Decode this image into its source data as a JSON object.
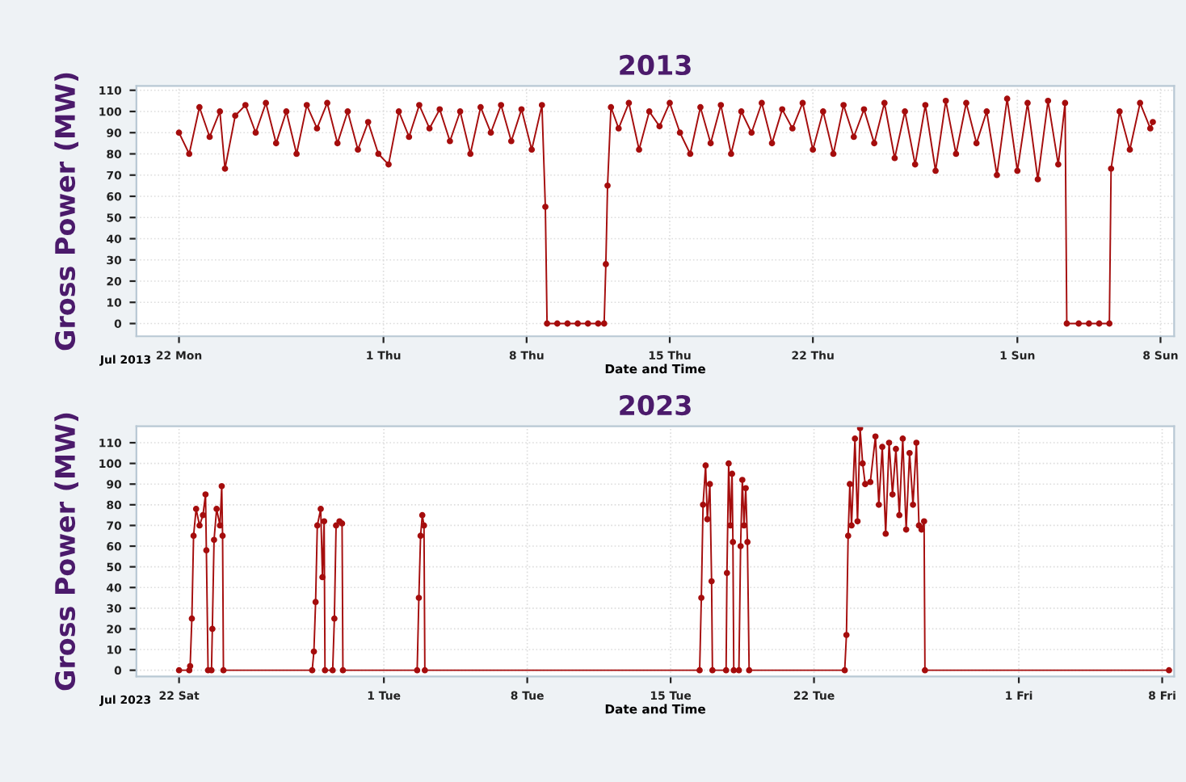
{
  "chart_data": [
    {
      "type": "line",
      "title": "2013",
      "xlabel": "Date and Time",
      "ylabel": "Gross Power (MW)",
      "annotations": [
        "Jul 2013"
      ],
      "marker": "circle",
      "line_style": "solid",
      "grid": true,
      "xlim": [
        "2013-07-19T22:00",
        "2013-09-08T16:00"
      ],
      "xticks": [
        {
          "value": "2013-07-22",
          "label": "22 Mon"
        },
        {
          "value": "2013-08-01",
          "label": "1 Thu"
        },
        {
          "value": "2013-08-08",
          "label": "8 Thu"
        },
        {
          "value": "2013-08-15",
          "label": "15 Thu"
        },
        {
          "value": "2013-08-22",
          "label": "22 Thu"
        },
        {
          "value": "2013-09-01",
          "label": "1 Sun"
        },
        {
          "value": "2013-09-08",
          "label": "8 Sun"
        }
      ],
      "ylim": [
        -6,
        112
      ],
      "yticks": [
        0,
        10,
        20,
        30,
        40,
        50,
        60,
        70,
        80,
        90,
        100,
        110
      ],
      "series": [
        {
          "color": "#a50d0d",
          "x": [
            "2013-07-22T00:00",
            "2013-07-22T12:00",
            "2013-07-23T00:00",
            "2013-07-23T12:00",
            "2013-07-24T00:00",
            "2013-07-24T06:00",
            "2013-07-24T18:00",
            "2013-07-25T06:00",
            "2013-07-25T18:00",
            "2013-07-26T06:00",
            "2013-07-26T18:00",
            "2013-07-27T06:00",
            "2013-07-27T18:00",
            "2013-07-28T06:00",
            "2013-07-28T18:00",
            "2013-07-29T06:00",
            "2013-07-29T18:00",
            "2013-07-30T06:00",
            "2013-07-30T18:00",
            "2013-07-31T06:00",
            "2013-07-31T18:00",
            "2013-08-01T06:00",
            "2013-08-01T18:00",
            "2013-08-02T06:00",
            "2013-08-02T18:00",
            "2013-08-03T06:00",
            "2013-08-03T18:00",
            "2013-08-04T06:00",
            "2013-08-04T18:00",
            "2013-08-05T06:00",
            "2013-08-05T18:00",
            "2013-08-06T06:00",
            "2013-08-06T18:00",
            "2013-08-07T06:00",
            "2013-08-07T18:00",
            "2013-08-08T06:00",
            "2013-08-08T18:00",
            "2013-08-08T22:00",
            "2013-08-09T00:00",
            "2013-08-09T12:00",
            "2013-08-10T00:00",
            "2013-08-10T12:00",
            "2013-08-11T00:00",
            "2013-08-11T12:00",
            "2013-08-11T19:00",
            "2013-08-11T21:00",
            "2013-08-11T23:00",
            "2013-08-12T03:00",
            "2013-08-12T12:00",
            "2013-08-13T00:00",
            "2013-08-13T12:00",
            "2013-08-14T00:00",
            "2013-08-14T12:00",
            "2013-08-15T00:00",
            "2013-08-15T12:00",
            "2013-08-16T00:00",
            "2013-08-16T12:00",
            "2013-08-17T00:00",
            "2013-08-17T12:00",
            "2013-08-18T00:00",
            "2013-08-18T12:00",
            "2013-08-19T00:00",
            "2013-08-19T12:00",
            "2013-08-20T00:00",
            "2013-08-20T12:00",
            "2013-08-21T00:00",
            "2013-08-21T12:00",
            "2013-08-22T00:00",
            "2013-08-22T12:00",
            "2013-08-23T00:00",
            "2013-08-23T12:00",
            "2013-08-24T00:00",
            "2013-08-24T12:00",
            "2013-08-25T00:00",
            "2013-08-25T12:00",
            "2013-08-26T00:00",
            "2013-08-26T12:00",
            "2013-08-27T00:00",
            "2013-08-27T12:00",
            "2013-08-28T00:00",
            "2013-08-28T12:00",
            "2013-08-29T00:00",
            "2013-08-29T12:00",
            "2013-08-30T00:00",
            "2013-08-30T12:00",
            "2013-08-31T00:00",
            "2013-08-31T12:00",
            "2013-09-01T00:00",
            "2013-09-01T12:00",
            "2013-09-02T00:00",
            "2013-09-02T12:00",
            "2013-09-03T00:00",
            "2013-09-03T08:00",
            "2013-09-03T10:00",
            "2013-09-04T00:00",
            "2013-09-04T12:00",
            "2013-09-05T00:00",
            "2013-09-05T12:00",
            "2013-09-05T14:00",
            "2013-09-06T00:00",
            "2013-09-06T12:00",
            "2013-09-07T00:00",
            "2013-09-07T12:00",
            "2013-09-07T15:00"
          ],
          "values": [
            90,
            80,
            102,
            88,
            100,
            73,
            98,
            103,
            90,
            104,
            85,
            100,
            80,
            103,
            92,
            104,
            85,
            100,
            82,
            95,
            80,
            75,
            100,
            88,
            103,
            92,
            101,
            86,
            100,
            80,
            102,
            90,
            103,
            86,
            101,
            82,
            103,
            55,
            0,
            0,
            0,
            0,
            0,
            0,
            0,
            28,
            65,
            102,
            92,
            104,
            82,
            100,
            93,
            104,
            90,
            80,
            102,
            85,
            103,
            80,
            100,
            90,
            104,
            85,
            101,
            92,
            104,
            82,
            100,
            80,
            103,
            88,
            101,
            85,
            104,
            78,
            100,
            75,
            103,
            72,
            105,
            80,
            104,
            85,
            100,
            70,
            106,
            72,
            104,
            68,
            105,
            75,
            104,
            0,
            0,
            0,
            0,
            0,
            73,
            100,
            82,
            104,
            92,
            95
          ]
        }
      ]
    },
    {
      "type": "line",
      "title": "2023",
      "xlabel": "Date and Time",
      "ylabel": "Gross Power (MW)",
      "annotations": [
        "Jul 2023"
      ],
      "marker": "circle",
      "line_style": "solid",
      "grid": true,
      "xlim": [
        "2023-07-19T22:00",
        "2023-09-08T14:00"
      ],
      "xticks": [
        {
          "value": "2023-07-22",
          "label": "22 Sat"
        },
        {
          "value": "2023-08-01",
          "label": "1 Tue"
        },
        {
          "value": "2023-08-08",
          "label": "8 Tue"
        },
        {
          "value": "2023-08-15",
          "label": "15 Tue"
        },
        {
          "value": "2023-08-22",
          "label": "22 Tue"
        },
        {
          "value": "2023-09-01",
          "label": "1 Fri"
        },
        {
          "value": "2023-09-08",
          "label": "8 Fri"
        }
      ],
      "ylim": [
        -3,
        118
      ],
      "yticks": [
        0,
        10,
        20,
        30,
        40,
        50,
        60,
        70,
        80,
        90,
        100,
        110
      ],
      "series": [
        {
          "color": "#a50d0d",
          "x": [
            "2023-07-22T00:00",
            "2023-07-22T12:00",
            "2023-07-22T13:00",
            "2023-07-22T15:00",
            "2023-07-22T17:00",
            "2023-07-22T20:00",
            "2023-07-23T00:00",
            "2023-07-23T04:00",
            "2023-07-23T07:00",
            "2023-07-23T08:00",
            "2023-07-23T10:00",
            "2023-07-23T14:00",
            "2023-07-23T15:00",
            "2023-07-23T17:00",
            "2023-07-23T20:00",
            "2023-07-24T00:00",
            "2023-07-24T02:00",
            "2023-07-24T03:00",
            "2023-07-24T04:00",
            "2023-07-28T12:00",
            "2023-07-28T14:00",
            "2023-07-28T16:00",
            "2023-07-28T18:00",
            "2023-07-28T22:00",
            "2023-07-29T00:00",
            "2023-07-29T02:00",
            "2023-07-29T03:00",
            "2023-07-29T12:00",
            "2023-07-29T14:00",
            "2023-07-29T16:00",
            "2023-07-29T20:00",
            "2023-07-29T23:00",
            "2023-07-30T00:00",
            "2023-08-02T15:00",
            "2023-08-02T17:00",
            "2023-08-02T19:00",
            "2023-08-02T21:00",
            "2023-08-02T23:00",
            "2023-08-03T00:00",
            "2023-08-16T10:00",
            "2023-08-16T12:00",
            "2023-08-16T14:00",
            "2023-08-16T17:00",
            "2023-08-16T19:00",
            "2023-08-16T22:00",
            "2023-08-17T00:00",
            "2023-08-17T01:00",
            "2023-08-17T17:00",
            "2023-08-17T18:00",
            "2023-08-17T20:00",
            "2023-08-17T22:00",
            "2023-08-18T00:00",
            "2023-08-18T01:00",
            "2023-08-18T02:00",
            "2023-08-18T08:00",
            "2023-08-18T10:00",
            "2023-08-18T12:00",
            "2023-08-18T14:00",
            "2023-08-18T16:00",
            "2023-08-18T18:00",
            "2023-08-18T20:00",
            "2023-08-23T12:00",
            "2023-08-23T14:00",
            "2023-08-23T16:00",
            "2023-08-23T18:00",
            "2023-08-23T20:00",
            "2023-08-24T00:00",
            "2023-08-24T03:00",
            "2023-08-24T06:00",
            "2023-08-24T09:00",
            "2023-08-24T12:00",
            "2023-08-24T18:00",
            "2023-08-25T00:00",
            "2023-08-25T04:00",
            "2023-08-25T08:00",
            "2023-08-25T12:00",
            "2023-08-25T16:00",
            "2023-08-25T20:00",
            "2023-08-26T00:00",
            "2023-08-26T04:00",
            "2023-08-26T08:00",
            "2023-08-26T12:00",
            "2023-08-26T16:00",
            "2023-08-26T20:00",
            "2023-08-27T00:00",
            "2023-08-27T03:00",
            "2023-08-27T06:00",
            "2023-08-27T09:00",
            "2023-08-27T10:00",
            "2023-09-08T08:00"
          ],
          "values": [
            0,
            0,
            2,
            25,
            65,
            78,
            70,
            75,
            85,
            58,
            0,
            0,
            20,
            63,
            78,
            70,
            89,
            65,
            0,
            0,
            9,
            33,
            70,
            78,
            45,
            72,
            0,
            0,
            25,
            70,
            72,
            71,
            0,
            0,
            35,
            65,
            75,
            70,
            0,
            0,
            35,
            80,
            99,
            73,
            90,
            43,
            0,
            0,
            47,
            100,
            70,
            95,
            62,
            0,
            0,
            60,
            92,
            70,
            88,
            62,
            0,
            0,
            17,
            65,
            90,
            70,
            112,
            72,
            117,
            100,
            90,
            91,
            113,
            80,
            108,
            66,
            110,
            85,
            107,
            75,
            112,
            68,
            105,
            80,
            110,
            70,
            68,
            72,
            0,
            0
          ]
        }
      ]
    }
  ]
}
